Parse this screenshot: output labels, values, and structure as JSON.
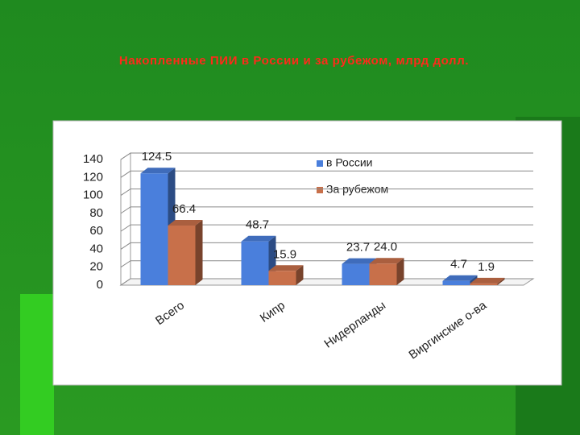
{
  "chart_data": {
    "type": "bar3d",
    "title": "Накопленные ПИИ в России и за рубежом, млрд долл.",
    "categories": [
      "Всего",
      "Кипр",
      "Нидерланды",
      "Виргинские о-ва"
    ],
    "series": [
      {
        "name": "в России",
        "color": "#4a7fdc",
        "values": [
          124.5,
          48.7,
          23.7,
          4.7
        ],
        "value_labels": [
          "124.5",
          "48.7",
          "23.7",
          "4.7"
        ]
      },
      {
        "name": "За рубежом",
        "color": "#c8704a",
        "values": [
          66.4,
          15.9,
          24,
          1.9
        ],
        "value_labels": [
          "66.4",
          "15.9",
          "24.0",
          "1.9"
        ]
      }
    ],
    "ylim": [
      0,
      140
    ],
    "yticks": [
      0,
      20,
      40,
      60,
      80,
      100,
      120,
      140
    ],
    "grid": true,
    "legend": "top-right"
  }
}
